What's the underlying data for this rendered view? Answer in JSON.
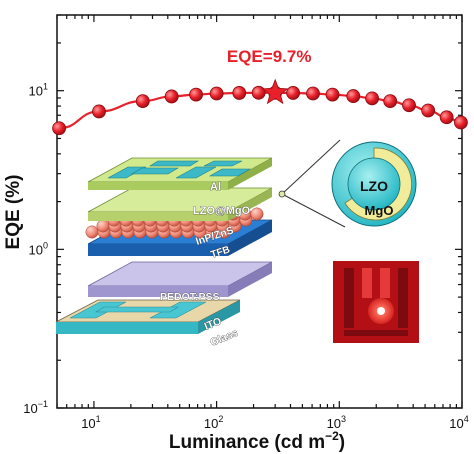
{
  "chart_data": {
    "type": "line",
    "xlabel": "Luminance (cd m",
    "xlabel_sup": "−2",
    "xlabel_close": ")",
    "ylabel": "EQE (%)",
    "x_scale": "log",
    "y_scale": "log",
    "xlim": [
      5,
      10000
    ],
    "ylim": [
      0.1,
      30
    ],
    "x_ticks": [
      {
        "base": "10",
        "exp": "1"
      },
      {
        "base": "10",
        "exp": "2"
      },
      {
        "base": "10",
        "exp": "3"
      },
      {
        "base": "10",
        "exp": "4"
      }
    ],
    "y_ticks": [
      {
        "base": "10",
        "exp": "−1"
      },
      {
        "base": "10",
        "exp": "0"
      },
      {
        "base": "10",
        "exp": "1"
      }
    ],
    "series": [
      {
        "color": "#e8202a",
        "x": [
          5.2,
          11,
          25,
          43,
          68,
          100,
          153,
          220,
          300,
          420,
          610,
          880,
          1300,
          1850,
          2600,
          3700,
          5300,
          7500,
          9800
        ],
        "y": [
          5.8,
          7.4,
          8.6,
          9.2,
          9.45,
          9.6,
          9.68,
          9.7,
          9.7,
          9.68,
          9.6,
          9.45,
          9.25,
          8.95,
          8.6,
          8.1,
          7.5,
          6.8,
          6.3
        ]
      }
    ],
    "annotation": {
      "text": "EQE=9.7%",
      "x": 300,
      "y": 9.7,
      "marker": "star",
      "color": "#e8202a"
    },
    "grid": false,
    "legend": "none"
  },
  "inset_device": {
    "layers": [
      "Al",
      "LZO@MgO",
      "InP/ZnS",
      "TFB",
      "PEDOT:PSS",
      "ITO",
      "Glass"
    ],
    "nanoparticle": {
      "core": "LZO",
      "shell": "MgO"
    },
    "photo": "emitting-device-photo"
  }
}
